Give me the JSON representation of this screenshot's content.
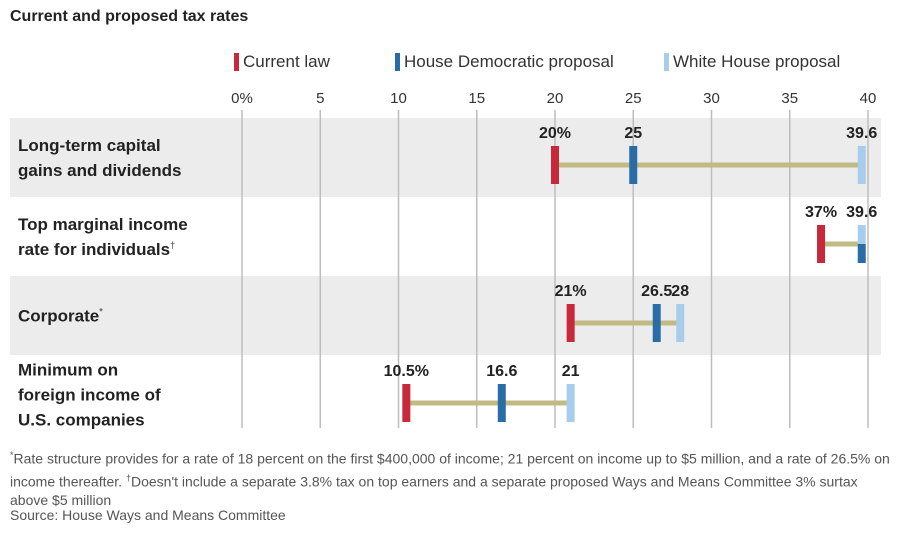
{
  "title": "Current and proposed tax rates",
  "legend": [
    {
      "label": "Current law",
      "color": "#c8283a"
    },
    {
      "label": "House Democratic proposal",
      "color": "#2a6da6"
    },
    {
      "label": "White House proposal",
      "color": "#a8cdec"
    }
  ],
  "chart_data": {
    "type": "range-dot",
    "ticks": [
      0,
      5,
      10,
      15,
      20,
      25,
      30,
      35,
      40
    ],
    "tick_labels": [
      "0%",
      "5",
      "10",
      "15",
      "20",
      "25",
      "30",
      "35",
      "40"
    ],
    "xlim": [
      0,
      40
    ],
    "range_color": "#bfbb82",
    "band_color": "#ececed",
    "rows": [
      {
        "label_lines": [
          "Long-term capital",
          "gains and dividends"
        ],
        "mark": "",
        "banded": true,
        "current": 20,
        "house": 25,
        "white_house": 39.6,
        "current_label": "20%",
        "house_label": "25",
        "white_house_label": "39.6"
      },
      {
        "label_lines": [
          "Top marginal income",
          "rate for individuals"
        ],
        "mark": "†",
        "banded": false,
        "current": 37,
        "house": 39.6,
        "white_house": 39.6,
        "current_label": "37%",
        "house_label": "",
        "white_house_label": "39.6"
      },
      {
        "label_lines": [
          "Corporate"
        ],
        "mark": "*",
        "banded": true,
        "current": 21,
        "house": 26.5,
        "white_house": 28,
        "current_label": "21%",
        "house_label": "26.5",
        "white_house_label": "28"
      },
      {
        "label_lines": [
          "Minimum on",
          "foreign income of",
          "U.S. companies"
        ],
        "mark": "",
        "banded": false,
        "current": 10.5,
        "house": 16.6,
        "white_house": 21,
        "current_label": "10.5%",
        "house_label": "16.6",
        "white_house_label": "21"
      }
    ]
  },
  "footnote": {
    "mark1": "*",
    "text1": "Rate structure provides for a rate of 18 percent on the first $400,000 of income; 21 percent on income up to $5 million, and a rate of 26.5% on income thereafter. ",
    "mark2": "†",
    "text2": "Doesn't include a separate 3.8% tax on top earners and a separate proposed Ways and Means Committee 3% surtax above $5 million"
  },
  "source": "Source: House Ways and Means Committee"
}
